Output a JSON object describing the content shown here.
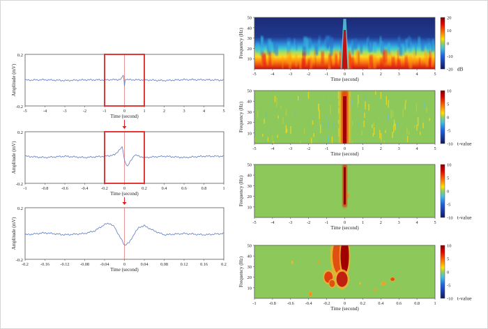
{
  "chart_data": [
    {
      "type": "line",
      "panel": "left-1",
      "xlabel": "Time (second)",
      "ylabel": "Amplitude (mV)",
      "xlim": [
        -5,
        5
      ],
      "ylim": [
        -0.2,
        0.2
      ],
      "xticks": [
        "-5",
        "-4",
        "-3",
        "-2",
        "-1",
        "0",
        "1",
        "2",
        "3",
        "4",
        "5"
      ],
      "yticks": [
        "0.2",
        "-0.2"
      ],
      "series": [
        {
          "x": [
            -5,
            -4,
            -3,
            -2,
            -1,
            -0.2,
            -0.1,
            -0.05,
            0,
            0.05,
            0.1,
            0.2,
            1,
            2,
            3,
            4,
            5
          ],
          "values": [
            0,
            0.003,
            -0.003,
            0.002,
            0.002,
            0.005,
            0.02,
            0.06,
            -0.05,
            0.02,
            0.005,
            0.003,
            0.002,
            -0.003,
            0.004,
            0.003,
            0
          ]
        }
      ],
      "highlight_box": [
        -1,
        1
      ],
      "line_color": "#6b86c8"
    },
    {
      "type": "line",
      "panel": "left-2",
      "xlabel": "Time (second)",
      "ylabel": "Amplitude (mV)",
      "xlim": [
        -1,
        1
      ],
      "ylim": [
        -0.2,
        0.2
      ],
      "xticks": [
        "-1",
        "-0.8",
        "-0.6",
        "-0.4",
        "-0.2",
        "0",
        "0.2",
        "0.4",
        "0.6",
        "0.8",
        "1"
      ],
      "yticks": [
        "0.2",
        "-0.2"
      ],
      "series": [
        {
          "x": [
            -1,
            -0.8,
            -0.6,
            -0.4,
            -0.2,
            -0.1,
            -0.05,
            -0.02,
            0,
            0.03,
            0.06,
            0.1,
            0.2,
            0.4,
            0.6,
            0.8,
            1
          ],
          "values": [
            0.01,
            0.0,
            0.01,
            0.0,
            0.01,
            0.02,
            0.06,
            0.08,
            -0.02,
            -0.07,
            -0.03,
            0.02,
            0.0,
            0.01,
            0.0,
            0.01,
            0.01
          ]
        }
      ],
      "highlight_box": [
        -0.2,
        0.2
      ],
      "line_color": "#6b86c8"
    },
    {
      "type": "line",
      "panel": "left-3",
      "xlabel": "Time (second)",
      "ylabel": "Amplitude (mV)",
      "xlim": [
        -0.2,
        0.2
      ],
      "ylim": [
        -0.2,
        0.2
      ],
      "xticks": [
        "-0.2",
        "-0.16",
        "-0.12",
        "-0.08",
        "-0.04",
        "0",
        "0.04",
        "0.08",
        "0.12",
        "0.16",
        "0.2"
      ],
      "yticks": [
        "0.2",
        "-0.2"
      ],
      "series": [
        {
          "x": [
            -0.2,
            -0.16,
            -0.12,
            -0.08,
            -0.06,
            -0.04,
            -0.03,
            -0.02,
            -0.01,
            0,
            0.01,
            0.02,
            0.03,
            0.04,
            0.06,
            0.08,
            0.12,
            0.16,
            0.2
          ],
          "values": [
            -0.01,
            0.005,
            -0.01,
            0.0,
            0.02,
            0.07,
            0.08,
            0.05,
            -0.02,
            -0.09,
            -0.07,
            0.0,
            0.05,
            0.06,
            0.02,
            -0.01,
            0.0,
            -0.01,
            0.0
          ]
        }
      ],
      "line_color": "#6b86c8"
    },
    {
      "type": "heatmap",
      "panel": "right-1",
      "xlabel": "Time (second)",
      "ylabel": "Frequency (Hz)",
      "xlim": [
        -5,
        5
      ],
      "ylim": [
        0,
        50
      ],
      "xticks": [
        "-5",
        "-4",
        "-3",
        "-2",
        "-1",
        "0",
        "1",
        "2",
        "3",
        "4",
        "5"
      ],
      "yticks": [
        "50",
        "40",
        "30",
        "20",
        "10"
      ],
      "colorbar": {
        "ticks": [
          "20",
          "10",
          "0",
          "-10",
          "-20"
        ],
        "unit": "dB"
      }
    },
    {
      "type": "heatmap",
      "panel": "right-2",
      "xlabel": "Time (second)",
      "ylabel": "Frequency (Hz)",
      "xlim": [
        -5,
        5
      ],
      "ylim": [
        0,
        50
      ],
      "xticks": [
        "-5",
        "-4",
        "-3",
        "-2",
        "-1",
        "0",
        "1",
        "2",
        "3",
        "4",
        "5"
      ],
      "yticks": [
        "50",
        "40",
        "30",
        "20",
        "10"
      ],
      "colorbar": {
        "ticks": [
          "10",
          "5",
          "0",
          "-5",
          "-10"
        ],
        "unit": "t-value"
      }
    },
    {
      "type": "heatmap",
      "panel": "right-3",
      "xlabel": "Time (second)",
      "ylabel": "Frequency (Hz)",
      "xlim": [
        -5,
        5
      ],
      "ylim": [
        0,
        50
      ],
      "xticks": [
        "-5",
        "-4",
        "-3",
        "-2",
        "-1",
        "0",
        "1",
        "2",
        "3",
        "4",
        "5"
      ],
      "yticks": [
        "50",
        "40",
        "30",
        "20",
        "10"
      ],
      "colorbar": {
        "ticks": [
          "10",
          "5",
          "0",
          "-5",
          "-10"
        ],
        "unit": "t-value"
      }
    },
    {
      "type": "heatmap",
      "panel": "right-4",
      "xlabel": "Time (second)",
      "ylabel": "Frequency (Hz)",
      "xlim": [
        -1,
        1
      ],
      "ylim": [
        0,
        50
      ],
      "xticks": [
        "-1",
        "-0.8",
        "-0.6",
        "-0.4",
        "-0.2",
        "0",
        "0.2",
        "0.4",
        "0.6",
        "0.8",
        "1"
      ],
      "yticks": [
        "50",
        "40",
        "30",
        "20",
        "10"
      ],
      "colorbar": {
        "ticks": [
          "10",
          "5",
          "0",
          "-5",
          "-10"
        ],
        "unit": "t-value"
      }
    }
  ],
  "colors": {
    "signal": "#6b86c8",
    "highlight": "#e02020",
    "heat_bg_green": "#8cc85a",
    "dark_blue": "#1b2a78"
  }
}
